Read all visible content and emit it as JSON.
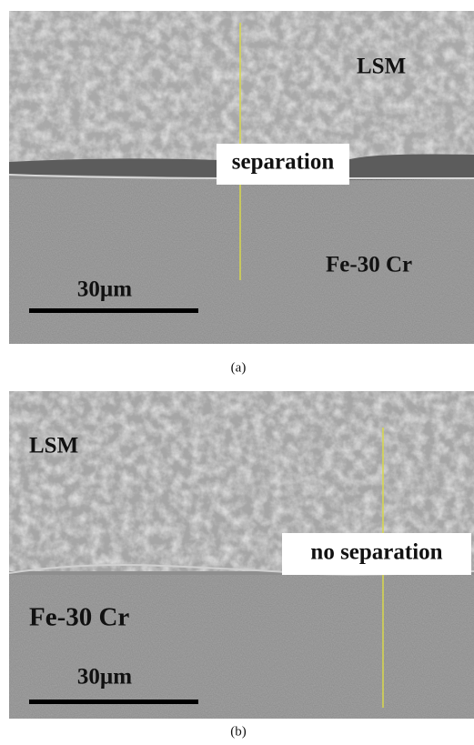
{
  "panels": [
    {
      "caption": "(a)",
      "top_label": "LSM",
      "interface_label": "separation",
      "bottom_label": "Fe-30 Cr",
      "scale_label": "30µm"
    },
    {
      "caption": "(b)",
      "top_label": "LSM",
      "interface_label": "no separation",
      "bottom_label": "Fe-30 Cr",
      "scale_label": "30µm"
    }
  ]
}
